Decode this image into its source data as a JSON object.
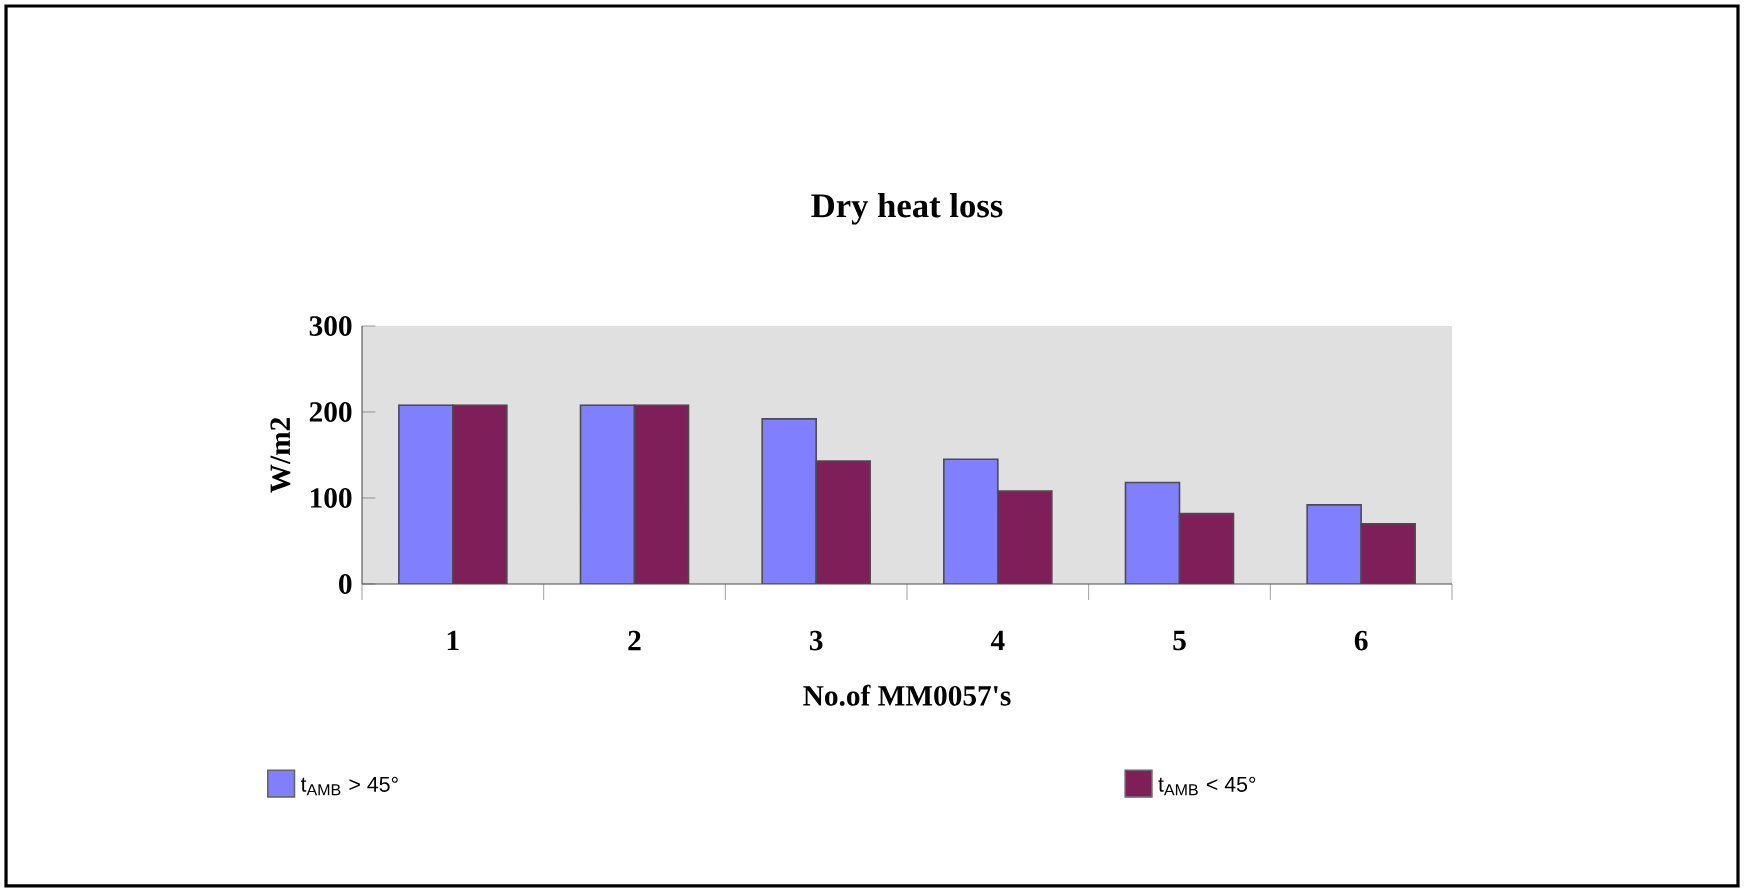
{
  "chart_data": {
    "type": "bar",
    "title": "Dry heat loss",
    "xlabel": "No.of MM0057's",
    "ylabel": "W/m2",
    "categories": [
      "1",
      "2",
      "3",
      "4",
      "5",
      "6"
    ],
    "series": [
      {
        "name": "t$_{AMB}$  > 45°",
        "color": "#8080ff",
        "values": [
          208,
          208,
          192,
          145,
          118,
          92
        ]
      },
      {
        "name": "t$_{AMB}$  < 45°",
        "color": "#7f1f5a",
        "values": [
          208,
          208,
          143,
          108,
          82,
          70
        ]
      }
    ],
    "ylim": [
      0,
      300
    ],
    "yticks": [
      0,
      100,
      200,
      300
    ],
    "grid": false,
    "legend": "bottom"
  }
}
